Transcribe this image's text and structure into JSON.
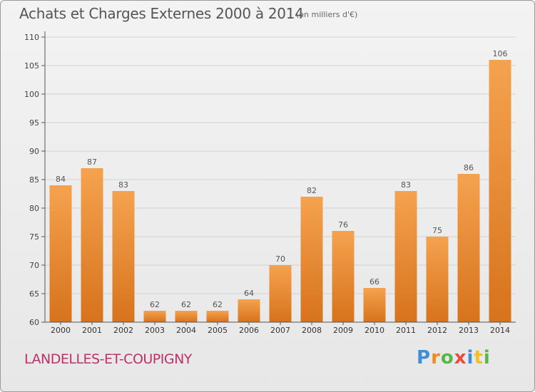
{
  "header": {
    "title": "Achats et Charges Externes 2000 à 2014",
    "subtitle": "(en milliers d'€)"
  },
  "footer": {
    "commune": "LANDELLES-ET-COUPIGNY",
    "logo": [
      "P",
      "r",
      "o",
      "x",
      "i",
      "t",
      "i"
    ]
  },
  "chart_data": {
    "type": "bar",
    "title": "Achats et Charges Externes 2000 à 2014",
    "subtitle": "(en milliers d'€)",
    "xlabel": "",
    "ylabel": "",
    "categories": [
      "2000",
      "2001",
      "2002",
      "2003",
      "2004",
      "2005",
      "2006",
      "2007",
      "2008",
      "2009",
      "2010",
      "2011",
      "2012",
      "2013",
      "2014"
    ],
    "values": [
      84,
      87,
      83,
      62,
      62,
      62,
      64,
      70,
      82,
      76,
      66,
      83,
      75,
      86,
      106
    ],
    "ylim": [
      60,
      110
    ],
    "yticks": [
      60,
      65,
      70,
      75,
      80,
      85,
      90,
      95,
      100,
      105,
      110
    ],
    "grid": true,
    "bar_color_top": "#f5a24f",
    "bar_color_bottom": "#d7731c",
    "show_data_labels": true
  }
}
